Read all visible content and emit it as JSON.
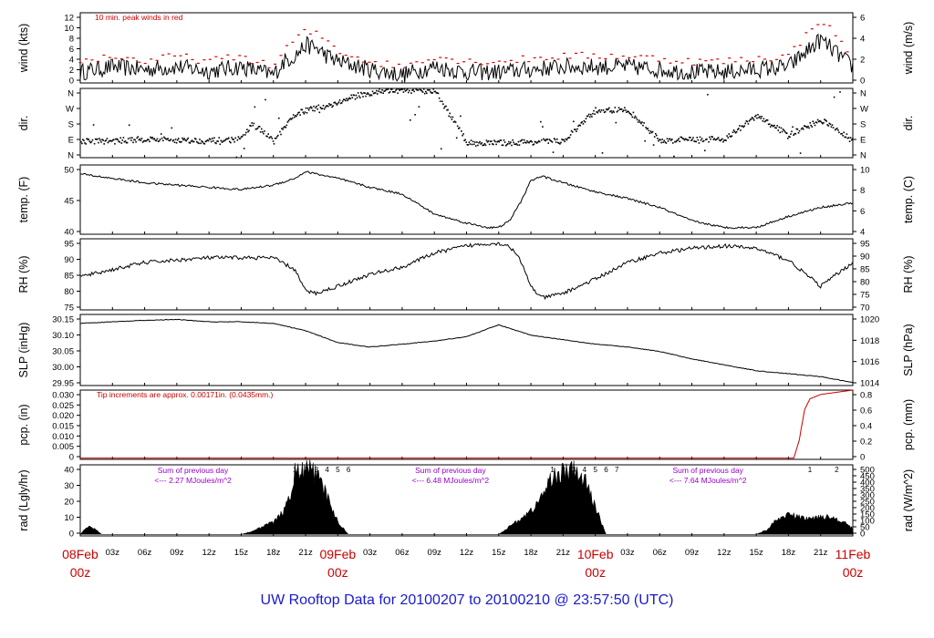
{
  "footer_title": "UW Rooftop Data for 20100207  to  20100210 @ 23:57:50  (UTC)",
  "colors": {
    "series": "#000000",
    "peak": "#dd0000",
    "annotation_red": "#cc0000",
    "annotation_purple": "#9900cc",
    "title": "#1a1acc"
  },
  "chart_data": [
    {
      "type": "line",
      "id": "wind",
      "left_label": "wind (kts)",
      "right_label": "wind (m/s)",
      "left_ticks": [
        "0",
        "2",
        "4",
        "6",
        "8",
        "10",
        "12"
      ],
      "right_ticks": [
        "0",
        "2",
        "4",
        "6"
      ],
      "annotation": "10 min. peak winds in red",
      "ylim": [
        0,
        13
      ],
      "series": [
        {
          "name": "",
          "role": "wind",
          "x": [
            0,
            3,
            6,
            9,
            12,
            15,
            17,
            18,
            19,
            20,
            21,
            22,
            23,
            24,
            27,
            30,
            33,
            36,
            39,
            42,
            45,
            48,
            51,
            54,
            57,
            60,
            63,
            66,
            69,
            72
          ],
          "y": [
            2,
            3,
            2.5,
            3,
            2.2,
            3,
            2,
            1.5,
            4,
            5,
            7,
            6.5,
            5,
            4,
            2.5,
            1.5,
            3,
            2,
            2,
            2.5,
            3,
            3,
            3,
            2.5,
            2,
            2,
            2.5,
            3,
            8,
            3
          ]
        },
        {
          "name": "",
          "role": "peak",
          "x": [
            0,
            3,
            6,
            9,
            12,
            15,
            17,
            18,
            19,
            20,
            21,
            22,
            23,
            24,
            27,
            30,
            33,
            36,
            39,
            42,
            45,
            48,
            51,
            54,
            57,
            60,
            63,
            66,
            69,
            72
          ],
          "y": [
            4,
            5,
            4,
            5,
            4,
            5,
            3.5,
            3,
            6,
            8,
            9.5,
            9,
            8,
            6,
            4,
            3,
            5,
            4,
            4,
            4.5,
            5,
            5,
            5,
            4.5,
            4,
            4,
            4.5,
            5,
            12,
            5
          ]
        }
      ]
    },
    {
      "type": "scatter",
      "id": "dir",
      "left_label": "dir.",
      "right_label": "dir.",
      "left_ticks": [
        "N",
        "E",
        "S",
        "W",
        "N"
      ],
      "right_ticks": [
        "N",
        "E",
        "S",
        "W",
        "N"
      ],
      "ylim": [
        0,
        360
      ],
      "series": [
        {
          "name": "",
          "x": [
            0,
            3,
            6,
            9,
            12,
            15,
            16,
            18,
            20,
            21,
            22,
            24,
            26,
            28,
            30,
            33,
            36,
            39,
            42,
            45,
            48,
            51,
            54,
            57,
            60,
            63,
            66,
            69,
            72
          ],
          "y": [
            90,
            90,
            100,
            95,
            90,
            100,
            180,
            90,
            230,
            250,
            260,
            290,
            330,
            350,
            355,
            350,
            80,
            80,
            85,
            90,
            250,
            250,
            90,
            100,
            100,
            220,
            120,
            200,
            90
          ]
        }
      ]
    },
    {
      "type": "line",
      "id": "temp",
      "left_label": "temp. (F)",
      "right_label": "temp. (C)",
      "left_ticks": [
        "40",
        "45",
        "50"
      ],
      "right_ticks": [
        "4",
        "6",
        "8",
        "10"
      ],
      "ylim": [
        37,
        52.5
      ],
      "series": [
        {
          "name": "",
          "x": [
            0,
            3,
            6,
            9,
            12,
            15,
            18,
            20,
            21,
            22,
            24,
            27,
            30,
            33,
            36,
            38,
            39,
            40,
            41,
            42,
            43,
            45,
            48,
            51,
            54,
            57,
            60,
            63,
            66,
            69,
            72
          ],
          "y": [
            50.5,
            49.5,
            48.5,
            48,
            47.5,
            47,
            48,
            49.5,
            51,
            50.5,
            49.5,
            47.5,
            46,
            41.5,
            39.5,
            38.5,
            38.5,
            40,
            44,
            49,
            50,
            48.5,
            46.5,
            45,
            43,
            40,
            38.5,
            38.5,
            41,
            43,
            44
          ]
        }
      ]
    },
    {
      "type": "line",
      "id": "rh",
      "left_label": "RH (%)",
      "right_label": "RH (%)",
      "left_ticks": [
        "75",
        "80",
        "85",
        "90",
        "95"
      ],
      "right_ticks": [
        "70",
        "75",
        "80",
        "85",
        "90",
        "95"
      ],
      "ylim": [
        69,
        99
      ],
      "series": [
        {
          "name": "",
          "x": [
            0,
            3,
            6,
            9,
            12,
            15,
            18,
            20,
            21,
            22,
            24,
            27,
            30,
            33,
            36,
            38,
            39,
            40,
            41,
            42,
            43,
            45,
            48,
            51,
            54,
            57,
            60,
            63,
            66,
            69,
            72
          ],
          "y": [
            83,
            86,
            89,
            90,
            91,
            91,
            91,
            86,
            77,
            76,
            79,
            84,
            87,
            93,
            96,
            97,
            97,
            96,
            90,
            79,
            74,
            76,
            82,
            89,
            93,
            95,
            96,
            95,
            90,
            79,
            89
          ]
        }
      ]
    },
    {
      "type": "line",
      "id": "slp",
      "left_label": "SLP (inHg)",
      "right_label": "SLP (hPa)",
      "left_ticks": [
        "29.95",
        "30.00",
        "30.05",
        "30.10",
        "30.15"
      ],
      "right_ticks": [
        "1014",
        "1016",
        "1018",
        "1020"
      ],
      "ylim": [
        29.925,
        30.165
      ],
      "series": [
        {
          "name": "",
          "x": [
            0,
            3,
            6,
            9,
            12,
            15,
            18,
            21,
            24,
            27,
            30,
            33,
            36,
            39,
            42,
            45,
            48,
            51,
            54,
            57,
            60,
            63,
            66,
            69,
            72
          ],
          "y": [
            30.135,
            30.14,
            30.145,
            30.148,
            30.14,
            30.14,
            30.135,
            30.11,
            30.07,
            30.055,
            30.065,
            30.075,
            30.09,
            30.13,
            30.095,
            30.08,
            30.065,
            30.055,
            30.04,
            30.015,
            29.995,
            29.975,
            29.965,
            29.955,
            29.935
          ]
        }
      ]
    },
    {
      "type": "line",
      "id": "pcp",
      "left_label": "pcp. (in)",
      "right_label": "pcp. (mm)",
      "left_ticks": [
        "0",
        "0.005",
        "0.010",
        "0.015",
        "0.020",
        "0.025",
        "0.030"
      ],
      "right_ticks": [
        "0",
        "0.2",
        "0.4",
        "0.6",
        "0.8"
      ],
      "annotation": "Tip increments are approx. 0.00171in. (0.0435mm.)",
      "ylim": [
        -0.0006,
        0.031
      ],
      "series": [
        {
          "name": "",
          "x": [
            0,
            66.5,
            67,
            67.5,
            68,
            69,
            72
          ],
          "y": [
            0,
            0,
            0.008,
            0.022,
            0.027,
            0.029,
            0.031
          ]
        }
      ]
    },
    {
      "type": "area",
      "id": "rad",
      "left_label": "rad (Lgly/hr)",
      "right_label": "rad (W/m^2)",
      "left_ticks": [
        "0",
        "10",
        "20",
        "30",
        "40"
      ],
      "right_ticks": [
        "0",
        "50",
        "100",
        "150",
        "200",
        "250",
        "300",
        "350",
        "400",
        "450",
        "500"
      ],
      "ylim": [
        -1,
        45
      ],
      "day_ticks": [
        [
          "1",
          "2",
          "3",
          "4",
          "5",
          "6"
        ],
        [
          "1",
          "2",
          "3",
          "4",
          "5",
          "6",
          "7"
        ],
        [
          "1",
          "2"
        ]
      ],
      "day_notes": [
        {
          "label": "Sum of previous day",
          "value": "<--- 2.27 MJoules/m^2"
        },
        {
          "label": "Sum of previous day",
          "value": "<--- 6.48 MJoules/m^2"
        },
        {
          "label": "Sum of previous day",
          "value": "<--- 7.64 MJoules/m^2"
        }
      ],
      "series": [
        {
          "name": "",
          "x": [
            0,
            0.5,
            1,
            1.5,
            2,
            15,
            16,
            17,
            18,
            19,
            19.5,
            20,
            21,
            21.5,
            22,
            23,
            24,
            25,
            39,
            40,
            41,
            42,
            43,
            44,
            45,
            46,
            47,
            48,
            49,
            63,
            64,
            65,
            66,
            67,
            68,
            69,
            70,
            71,
            72
          ],
          "y": [
            0,
            4,
            5,
            3,
            0,
            0,
            2,
            5,
            8,
            15,
            24,
            40,
            41,
            43,
            38,
            25,
            8,
            0,
            0,
            5,
            10,
            15,
            24,
            38,
            40,
            41,
            35,
            18,
            0,
            0,
            3,
            10,
            13,
            11,
            10,
            12,
            11,
            9,
            4
          ]
        }
      ]
    }
  ],
  "xaxis": {
    "hour_ticks": [
      "03z",
      "06z",
      "09z",
      "12z",
      "15z",
      "18z",
      "21z",
      "03z",
      "06z",
      "09z",
      "12z",
      "15z",
      "18z",
      "21z",
      "03z",
      "06z",
      "09z",
      "12z",
      "15z",
      "18z",
      "21z"
    ],
    "day_labels": [
      {
        "date": "08Feb",
        "hour": "00z"
      },
      {
        "date": "09Feb",
        "hour": "00z"
      },
      {
        "date": "10Feb",
        "hour": "00z"
      },
      {
        "date": "11Feb",
        "hour": "00z"
      }
    ]
  }
}
